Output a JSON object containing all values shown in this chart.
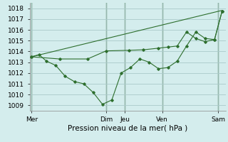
{
  "title": "",
  "xlabel": "Pression niveau de la mer( hPa )",
  "ylabel": "",
  "background_color": "#d4eded",
  "grid_color": "#aacaca",
  "line_color": "#2d6e2d",
  "ylim": [
    1008.5,
    1018.5
  ],
  "yticks": [
    1009,
    1010,
    1011,
    1012,
    1013,
    1014,
    1015,
    1016,
    1017,
    1018
  ],
  "x_tick_positions": [
    0,
    4,
    5,
    7,
    10
  ],
  "x_tick_labels": [
    "Mer",
    "Dim",
    "Jeu",
    "Ven",
    "Sam"
  ],
  "xlim": [
    -0.1,
    10.4
  ],
  "line1_x": [
    0,
    0.4,
    0.8,
    1.3,
    1.8,
    2.3,
    2.8,
    3.3,
    3.8,
    4.3,
    4.8,
    5.3,
    5.8,
    6.3,
    6.8,
    7.3,
    7.8,
    8.3,
    8.8,
    9.3,
    9.8,
    10.2
  ],
  "line1_y": [
    1013.5,
    1013.7,
    1013.1,
    1012.7,
    1011.7,
    1011.2,
    1011.0,
    1010.2,
    1009.1,
    1009.5,
    1012.0,
    1012.5,
    1013.3,
    1013.0,
    1012.4,
    1012.5,
    1013.1,
    1014.5,
    1015.8,
    1015.2,
    1015.1,
    1017.7
  ],
  "line2_x": [
    0,
    1.5,
    3.0,
    4.0,
    5.2,
    6.0,
    6.8,
    7.3,
    7.8,
    8.3,
    8.8,
    9.3,
    9.8,
    10.2
  ],
  "line2_y": [
    1013.5,
    1013.3,
    1013.3,
    1014.05,
    1014.1,
    1014.15,
    1014.3,
    1014.4,
    1014.5,
    1015.8,
    1015.2,
    1014.9,
    1015.1,
    1017.7
  ],
  "line3_x": [
    0,
    10.2
  ],
  "line3_y": [
    1013.5,
    1017.8
  ],
  "vline_positions": [
    0,
    4,
    5,
    7,
    10
  ]
}
